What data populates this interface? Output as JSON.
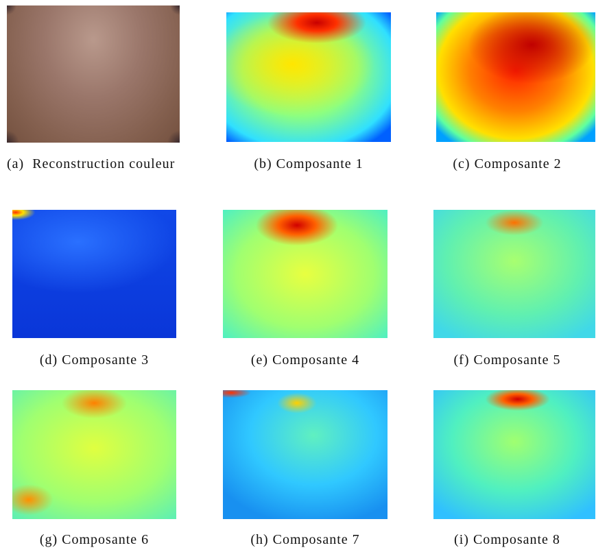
{
  "panels": [
    {
      "label": "(a)",
      "text": "Reconstruction couleur"
    },
    {
      "label": "(b)",
      "text": "Composante 1"
    },
    {
      "label": "(c)",
      "text": "Composante 2"
    },
    {
      "label": "(d)",
      "text": "Composante 3"
    },
    {
      "label": "(e)",
      "text": "Composante 4"
    },
    {
      "label": "(f)",
      "text": "Composante 5"
    },
    {
      "label": "(g)",
      "text": "Composante 6"
    },
    {
      "label": "(h)",
      "text": "Composante 7"
    },
    {
      "label": "(i)",
      "text": "Composante 8"
    }
  ]
}
